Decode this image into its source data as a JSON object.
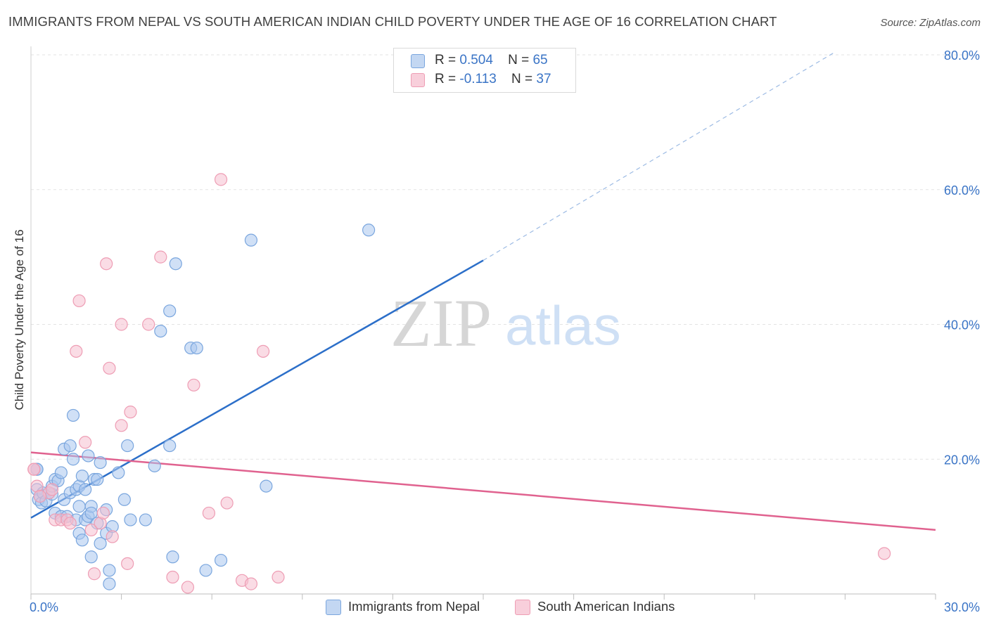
{
  "title": "IMMIGRANTS FROM NEPAL VS SOUTH AMERICAN INDIAN CHILD POVERTY UNDER THE AGE OF 16 CORRELATION CHART",
  "source": "Source: ZipAtlas.com",
  "watermark": {
    "zip": "ZIP",
    "atlas": "atlas"
  },
  "legend": {
    "rows": [
      {
        "r_label": "R =",
        "r_value": "0.504",
        "n_label": "N =",
        "n_value": "65"
      },
      {
        "r_label": "R =",
        "r_value": "-0.113",
        "n_label": "N =",
        "n_value": "37"
      }
    ]
  },
  "bottom_legend": {
    "nepal": "Immigrants from Nepal",
    "sai": "South American Indians"
  },
  "colors": {
    "nepal_fill": "#a9c7ee",
    "nepal_stroke": "#7aa6de",
    "nepal_line": "#2c6fc9",
    "sai_fill": "#f5bfcf",
    "sai_stroke": "#ee9db4",
    "sai_line": "#e0628f",
    "tick_label": "#3a74c6",
    "grid": "#e3e3e3"
  },
  "chart_data": {
    "type": "scatter",
    "title": "IMMIGRANTS FROM NEPAL VS SOUTH AMERICAN INDIAN CHILD POVERTY UNDER THE AGE OF 16 CORRELATION CHART",
    "xlabel": "",
    "ylabel": "Child Poverty Under the Age of 16",
    "xlim": [
      0,
      30
    ],
    "ylim": [
      0,
      80
    ],
    "x_tick_labels": [
      {
        "value": 0,
        "label": "0.0%"
      },
      {
        "value": 30,
        "label": "30.0%"
      }
    ],
    "y_tick_labels": [
      {
        "value": 20,
        "label": "20.0%"
      },
      {
        "value": 40,
        "label": "40.0%"
      },
      {
        "value": 60,
        "label": "60.0%"
      },
      {
        "value": 80,
        "label": "80.0%"
      }
    ],
    "grid": true,
    "legend_position": "top-center",
    "series": [
      {
        "name": "Immigrants from Nepal",
        "color": "#a9c7ee",
        "trend": {
          "x": [
            0,
            15
          ],
          "y": [
            11.3,
            49.5
          ],
          "dashed_extension_to": [
            26.7,
            80.5
          ]
        },
        "points": [
          [
            0.2,
            18.5
          ],
          [
            0.2,
            15.5
          ],
          [
            0.25,
            14.0
          ],
          [
            0.3,
            14.5
          ],
          [
            0.35,
            13.5
          ],
          [
            0.4,
            15.0
          ],
          [
            0.5,
            13.8
          ],
          [
            0.6,
            15.0
          ],
          [
            0.7,
            14.8
          ],
          [
            0.7,
            16.0
          ],
          [
            0.8,
            17.0
          ],
          [
            0.8,
            12.0
          ],
          [
            0.9,
            16.8
          ],
          [
            1.0,
            11.5
          ],
          [
            1.0,
            18.0
          ],
          [
            1.1,
            14.0
          ],
          [
            1.1,
            21.5
          ],
          [
            1.2,
            11.5
          ],
          [
            1.3,
            15.0
          ],
          [
            1.3,
            22.0
          ],
          [
            1.4,
            26.5
          ],
          [
            1.4,
            20.0
          ],
          [
            1.5,
            15.5
          ],
          [
            1.5,
            11.0
          ],
          [
            1.6,
            16.0
          ],
          [
            1.6,
            13.0
          ],
          [
            1.6,
            9.0
          ],
          [
            1.7,
            17.5
          ],
          [
            1.7,
            8.0
          ],
          [
            1.8,
            11.0
          ],
          [
            1.8,
            15.5
          ],
          [
            1.9,
            20.5
          ],
          [
            1.9,
            11.5
          ],
          [
            2.0,
            13.0
          ],
          [
            2.0,
            12.0
          ],
          [
            2.0,
            5.5
          ],
          [
            2.1,
            17.0
          ],
          [
            2.2,
            10.5
          ],
          [
            2.2,
            17.0
          ],
          [
            2.3,
            19.5
          ],
          [
            2.3,
            7.5
          ],
          [
            2.5,
            12.5
          ],
          [
            2.5,
            9.0
          ],
          [
            2.6,
            3.5
          ],
          [
            2.6,
            1.5
          ],
          [
            2.7,
            10.0
          ],
          [
            2.9,
            18.0
          ],
          [
            3.1,
            14.0
          ],
          [
            3.2,
            22.0
          ],
          [
            3.3,
            11.0
          ],
          [
            3.8,
            11.0
          ],
          [
            4.1,
            19.0
          ],
          [
            4.3,
            39.0
          ],
          [
            4.6,
            42.0
          ],
          [
            4.6,
            22.0
          ],
          [
            4.7,
            5.5
          ],
          [
            4.8,
            49.0
          ],
          [
            5.3,
            36.5
          ],
          [
            5.5,
            36.5
          ],
          [
            5.8,
            3.5
          ],
          [
            6.3,
            5.0
          ],
          [
            7.3,
            52.5
          ],
          [
            7.8,
            16.0
          ],
          [
            11.2,
            54.0
          ],
          [
            0.2,
            18.5
          ]
        ]
      },
      {
        "name": "South American Indians",
        "color": "#f5bfcf",
        "trend": {
          "x": [
            0,
            30
          ],
          "y": [
            21.0,
            9.5
          ]
        },
        "points": [
          [
            0.1,
            18.5
          ],
          [
            0.2,
            16.0
          ],
          [
            0.6,
            15.0
          ],
          [
            0.7,
            15.5
          ],
          [
            0.8,
            11.0
          ],
          [
            1.0,
            11.0
          ],
          [
            1.2,
            11.0
          ],
          [
            1.3,
            10.5
          ],
          [
            1.5,
            36.0
          ],
          [
            1.6,
            43.5
          ],
          [
            1.8,
            22.5
          ],
          [
            2.0,
            9.5
          ],
          [
            2.1,
            3.0
          ],
          [
            2.3,
            10.5
          ],
          [
            2.4,
            12.0
          ],
          [
            2.5,
            49.0
          ],
          [
            2.6,
            33.5
          ],
          [
            2.7,
            8.5
          ],
          [
            3.0,
            25.0
          ],
          [
            3.0,
            40.0
          ],
          [
            3.2,
            4.5
          ],
          [
            3.3,
            27.0
          ],
          [
            3.9,
            40.0
          ],
          [
            4.3,
            50.0
          ],
          [
            4.7,
            2.5
          ],
          [
            5.2,
            1.0
          ],
          [
            5.4,
            31.0
          ],
          [
            5.9,
            12.0
          ],
          [
            6.3,
            61.5
          ],
          [
            6.5,
            13.5
          ],
          [
            7.0,
            2.0
          ],
          [
            7.3,
            1.5
          ],
          [
            7.7,
            36.0
          ],
          [
            8.2,
            2.5
          ],
          [
            28.3,
            6.0
          ],
          [
            0.1,
            18.5
          ],
          [
            0.3,
            14.5
          ]
        ]
      }
    ]
  }
}
